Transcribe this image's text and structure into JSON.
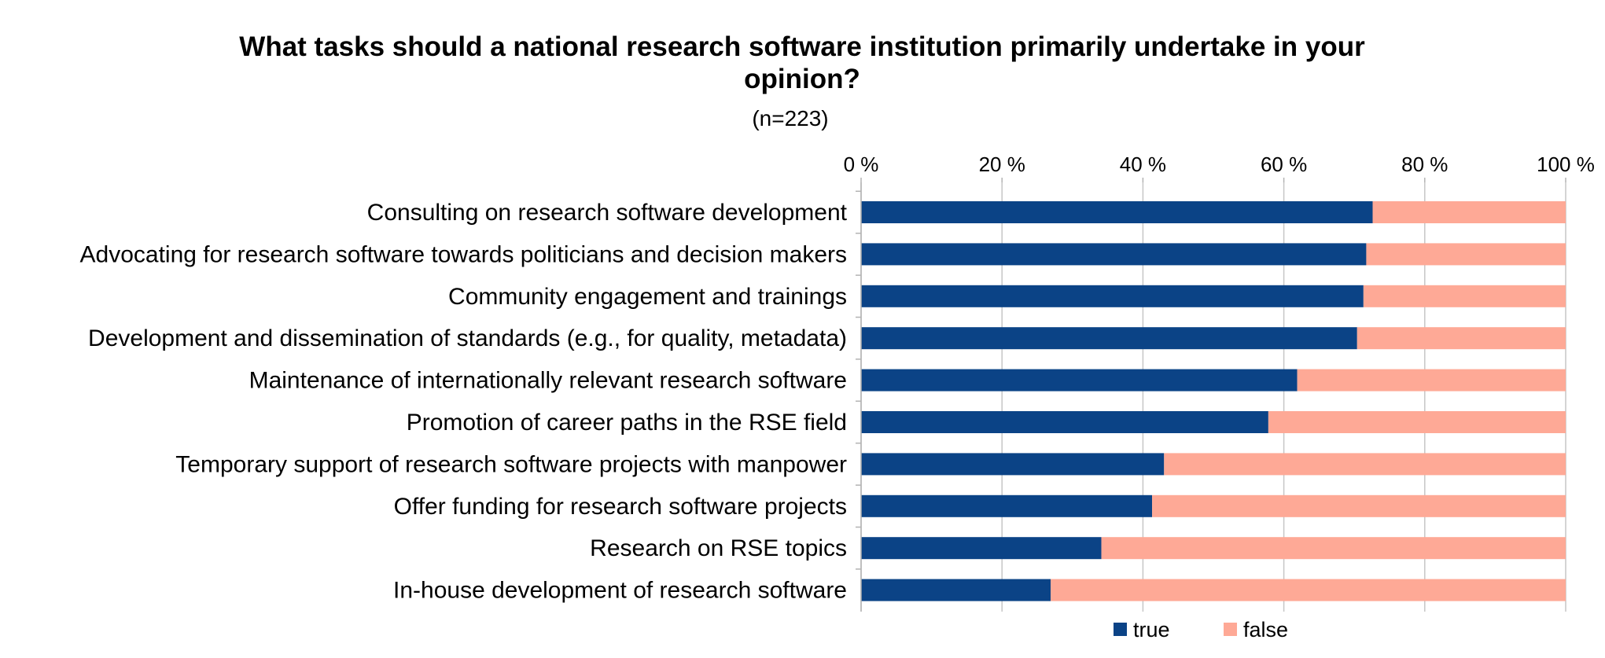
{
  "chart_data": {
    "type": "bar",
    "orientation": "horizontal",
    "stacked": true,
    "title": "What tasks should a national research software institution primarily undertake in your opinion?",
    "title_lines": [
      "What tasks should a national research software institution primarily undertake in your",
      "opinion?"
    ],
    "subtitle": "(n=223)",
    "categories": [
      "Consulting on research software development",
      "Advocating for research software towards politicians and decision makers",
      "Community engagement and trainings",
      "Development and dissemination of standards (e.g., for quality, metadata)",
      "Maintenance of internationally relevant research software",
      "Promotion of career paths in the RSE field",
      "Temporary support of research software projects with manpower",
      "Offer funding for research software projects",
      "Research on RSE topics",
      "In-house development of research software"
    ],
    "series": [
      {
        "name": "true",
        "color": "#0b4386",
        "values": [
          72.6,
          71.7,
          71.3,
          70.4,
          61.9,
          57.8,
          43.0,
          41.3,
          34.1,
          26.9
        ]
      },
      {
        "name": "false",
        "color": "#fea996",
        "values": [
          27.4,
          28.3,
          28.7,
          29.6,
          38.1,
          42.2,
          57.0,
          58.7,
          65.9,
          73.1
        ]
      }
    ],
    "xlim": [
      0,
      100
    ],
    "x_ticks": [
      0,
      20,
      40,
      60,
      80,
      100
    ],
    "x_tick_labels": [
      "0 %",
      "20 %",
      "40 %",
      "60 %",
      "80 %",
      "100 %"
    ],
    "x_axis_position": "top",
    "grid": true,
    "legend": "bottom-center",
    "xlabel": "",
    "ylabel": ""
  }
}
